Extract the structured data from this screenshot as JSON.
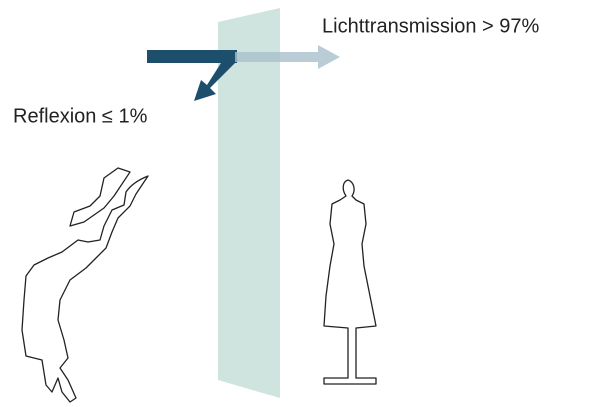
{
  "labels": {
    "transmission": "Lichttransmission > 97%",
    "reflection": "Reflexion ≤ 1%"
  }
}
